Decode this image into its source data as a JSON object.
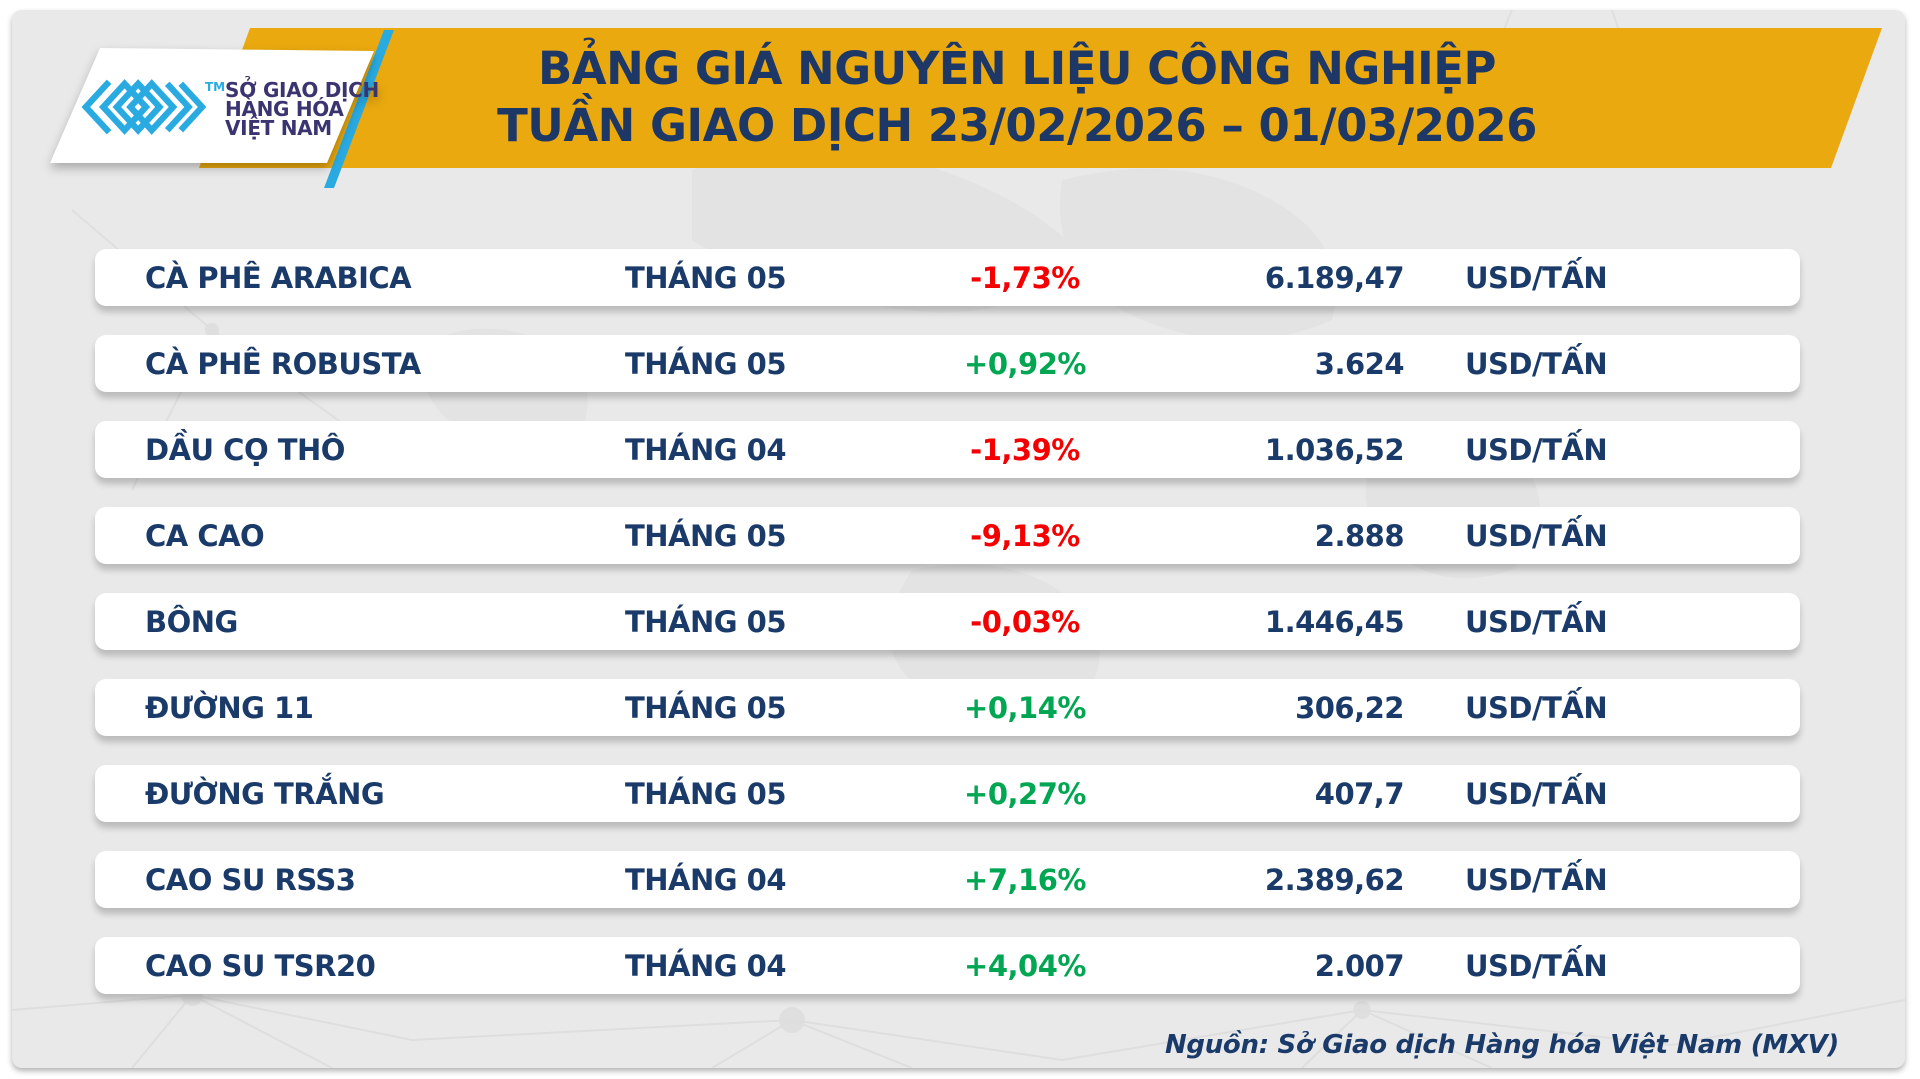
{
  "page": {
    "outer_background": "#ffffff",
    "card_background": "#e9e9e9"
  },
  "logo": {
    "mark_icon": "mxv-chevron-logo",
    "mark_color": "#29ABE2",
    "trademark": "TM",
    "org_lines": [
      "SỞ GIAO DỊCH",
      "HÀNG HÓA",
      "VIỆT NAM"
    ],
    "text_color": "#3A3470"
  },
  "header": {
    "banner_color": "#EAA90F",
    "title_color": "#1D3767",
    "title_line1": "BẢNG GIÁ NGUYÊN LIỆU CÔNG NGHIỆP",
    "title_line2": "TUẦN GIAO DỊCH 23/02/2026 – 01/03/2026"
  },
  "table": {
    "text_color": "#1A3A69",
    "up_color": "#00A651",
    "down_color": "#F40000",
    "rows": [
      {
        "name": "CÀ PHÊ ARABICA",
        "month": "THÁNG 05",
        "change": "-1,73%",
        "direction": "down",
        "price": "6.189,47",
        "unit": "USD/TẤN"
      },
      {
        "name": "CÀ PHÊ ROBUSTA",
        "month": "THÁNG 05",
        "change": "+0,92%",
        "direction": "up",
        "price": "3.624",
        "unit": "USD/TẤN"
      },
      {
        "name": "DẦU CỌ THÔ",
        "month": "THÁNG 04",
        "change": "-1,39%",
        "direction": "down",
        "price": "1.036,52",
        "unit": "USD/TẤN"
      },
      {
        "name": "CA CAO",
        "month": "THÁNG 05",
        "change": "-9,13%",
        "direction": "down",
        "price": "2.888",
        "unit": "USD/TẤN"
      },
      {
        "name": "BÔNG",
        "month": "THÁNG 05",
        "change": "-0,03%",
        "direction": "down",
        "price": "1.446,45",
        "unit": "USD/TẤN"
      },
      {
        "name": "ĐƯỜNG 11",
        "month": "THÁNG 05",
        "change": "+0,14%",
        "direction": "up",
        "price": "306,22",
        "unit": "USD/TẤN"
      },
      {
        "name": "ĐƯỜNG TRẮNG",
        "month": "THÁNG 05",
        "change": "+0,27%",
        "direction": "up",
        "price": "407,7",
        "unit": "USD/TẤN"
      },
      {
        "name": "CAO SU RSS3",
        "month": "THÁNG 04",
        "change": "+7,16%",
        "direction": "up",
        "price": "2.389,62",
        "unit": "USD/TẤN"
      },
      {
        "name": "CAO SU TSR20",
        "month": "THÁNG 04",
        "change": "+4,04%",
        "direction": "up",
        "price": "2.007",
        "unit": "USD/TẤN"
      }
    ]
  },
  "footer": {
    "source_text": "Nguồn: Sở Giao dịch Hàng hóa Việt Nam (MXV)"
  },
  "chart_data": {
    "type": "table",
    "title": "BẢNG GIÁ NGUYÊN LIỆU CÔNG NGHIỆP TUẦN GIAO DỊCH 23/02/2026 – 01/03/2026",
    "rows": [
      {
        "commodity": "CÀ PHÊ ARABICA",
        "contract_month": "THÁNG 05",
        "change_pct": -1.73,
        "price": 6189.47,
        "unit": "USD/TẤN"
      },
      {
        "commodity": "CÀ PHÊ ROBUSTA",
        "contract_month": "THÁNG 05",
        "change_pct": 0.92,
        "price": 3624,
        "unit": "USD/TẤN"
      },
      {
        "commodity": "DẦU CỌ THÔ",
        "contract_month": "THÁNG 04",
        "change_pct": -1.39,
        "price": 1036.52,
        "unit": "USD/TẤN"
      },
      {
        "commodity": "CA CAO",
        "contract_month": "THÁNG 05",
        "change_pct": -9.13,
        "price": 2888,
        "unit": "USD/TẤN"
      },
      {
        "commodity": "BÔNG",
        "contract_month": "THÁNG 05",
        "change_pct": -0.03,
        "price": 1446.45,
        "unit": "USD/TẤN"
      },
      {
        "commodity": "ĐƯỜNG 11",
        "contract_month": "THÁNG 05",
        "change_pct": 0.14,
        "price": 306.22,
        "unit": "USD/TẤN"
      },
      {
        "commodity": "ĐƯỜNG TRẮNG",
        "contract_month": "THÁNG 05",
        "change_pct": 0.27,
        "price": 407.7,
        "unit": "USD/TẤN"
      },
      {
        "commodity": "CAO SU RSS3",
        "contract_month": "THÁNG 04",
        "change_pct": 7.16,
        "price": 2389.62,
        "unit": "USD/TẤN"
      },
      {
        "commodity": "CAO SU TSR20",
        "contract_month": "THÁNG 04",
        "change_pct": 4.04,
        "price": 2007,
        "unit": "USD/TẤN"
      }
    ],
    "source": "Nguồn: Sở Giao dịch Hàng hóa Việt Nam (MXV)"
  }
}
